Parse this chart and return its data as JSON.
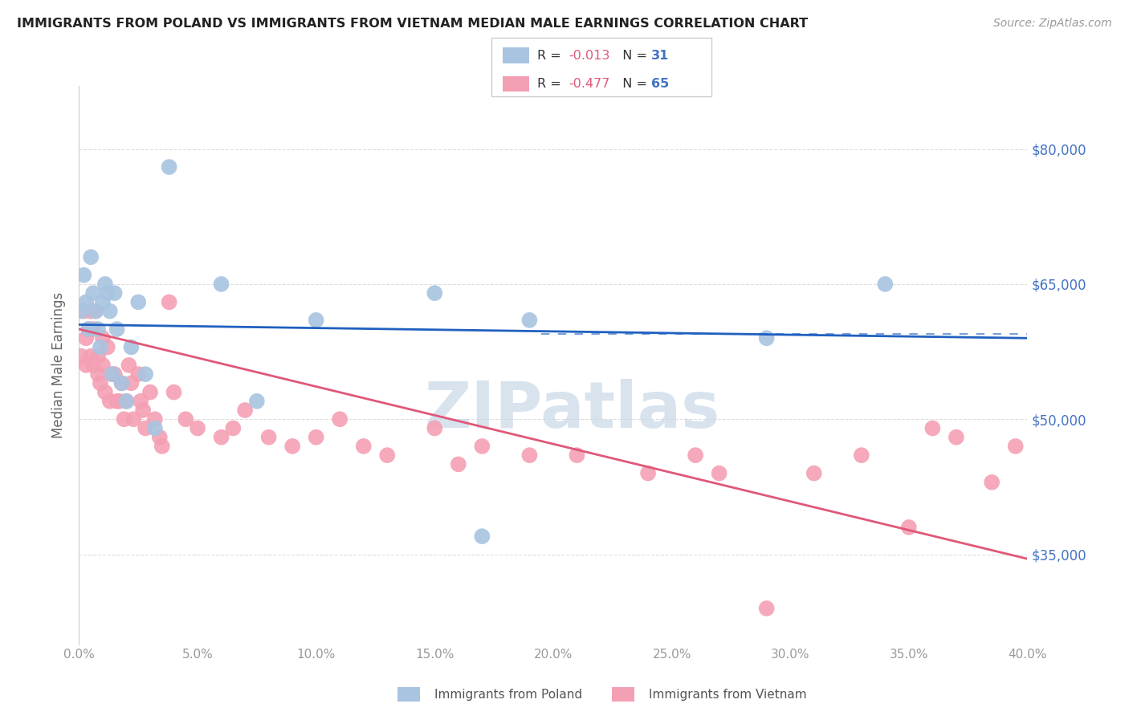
{
  "title": "IMMIGRANTS FROM POLAND VS IMMIGRANTS FROM VIETNAM MEDIAN MALE EARNINGS CORRELATION CHART",
  "source": "Source: ZipAtlas.com",
  "ylabel": "Median Male Earnings",
  "yticks": [
    35000,
    50000,
    65000,
    80000
  ],
  "ytick_labels": [
    "$35,000",
    "$50,000",
    "$65,000",
    "$80,000"
  ],
  "xmin": 0.0,
  "xmax": 0.4,
  "ymin": 25000,
  "ymax": 87000,
  "poland_R": "-0.013",
  "poland_N": "31",
  "vietnam_R": "-0.477",
  "vietnam_N": "65",
  "poland_color": "#a8c4e0",
  "vietnam_color": "#f4a0b4",
  "poland_line_color": "#2060c0",
  "vietnam_line_color": "#e05878",
  "poland_scatter_x": [
    0.001,
    0.002,
    0.003,
    0.004,
    0.005,
    0.006,
    0.007,
    0.008,
    0.009,
    0.01,
    0.011,
    0.012,
    0.013,
    0.014,
    0.015,
    0.016,
    0.018,
    0.02,
    0.022,
    0.025,
    0.028,
    0.032,
    0.038,
    0.06,
    0.075,
    0.1,
    0.15,
    0.17,
    0.19,
    0.29,
    0.34
  ],
  "poland_scatter_y": [
    62000,
    66000,
    63000,
    60000,
    68000,
    64000,
    62000,
    60000,
    58000,
    63000,
    65000,
    64000,
    62000,
    55000,
    64000,
    60000,
    54000,
    52000,
    58000,
    63000,
    55000,
    49000,
    78000,
    65000,
    52000,
    61000,
    64000,
    37000,
    61000,
    59000,
    65000
  ],
  "vietnam_scatter_x": [
    0.001,
    0.002,
    0.003,
    0.003,
    0.004,
    0.005,
    0.005,
    0.006,
    0.006,
    0.007,
    0.008,
    0.008,
    0.009,
    0.01,
    0.01,
    0.011,
    0.012,
    0.013,
    0.014,
    0.015,
    0.016,
    0.017,
    0.018,
    0.019,
    0.02,
    0.021,
    0.022,
    0.023,
    0.025,
    0.026,
    0.027,
    0.028,
    0.03,
    0.032,
    0.034,
    0.035,
    0.038,
    0.04,
    0.045,
    0.05,
    0.06,
    0.065,
    0.07,
    0.08,
    0.09,
    0.1,
    0.11,
    0.12,
    0.13,
    0.15,
    0.16,
    0.17,
    0.19,
    0.21,
    0.24,
    0.26,
    0.27,
    0.29,
    0.31,
    0.33,
    0.35,
    0.36,
    0.37,
    0.385,
    0.395
  ],
  "vietnam_scatter_y": [
    57000,
    62000,
    59000,
    56000,
    60000,
    62000,
    57000,
    60000,
    56000,
    62000,
    55000,
    57000,
    54000,
    56000,
    59000,
    53000,
    58000,
    52000,
    55000,
    55000,
    52000,
    52000,
    54000,
    50000,
    52000,
    56000,
    54000,
    50000,
    55000,
    52000,
    51000,
    49000,
    53000,
    50000,
    48000,
    47000,
    63000,
    53000,
    50000,
    49000,
    48000,
    49000,
    51000,
    48000,
    47000,
    48000,
    50000,
    47000,
    46000,
    49000,
    45000,
    47000,
    46000,
    46000,
    44000,
    46000,
    44000,
    29000,
    44000,
    46000,
    38000,
    49000,
    48000,
    43000,
    47000
  ],
  "background_color": "#ffffff",
  "grid_color": "#dddddd",
  "watermark_text": "ZIPatlas",
  "watermark_color": "#c8d8e8",
  "poland_line_x0": 0.0,
  "poland_line_x1": 0.4,
  "poland_line_y0": 60500,
  "poland_line_y1": 59000,
  "vietnam_line_x0": 0.0,
  "vietnam_line_x1": 0.4,
  "vietnam_line_y0": 60000,
  "vietnam_line_y1": 34500,
  "dashed_line_x0": 0.195,
  "dashed_line_x1": 0.4,
  "dashed_line_y": 59500
}
